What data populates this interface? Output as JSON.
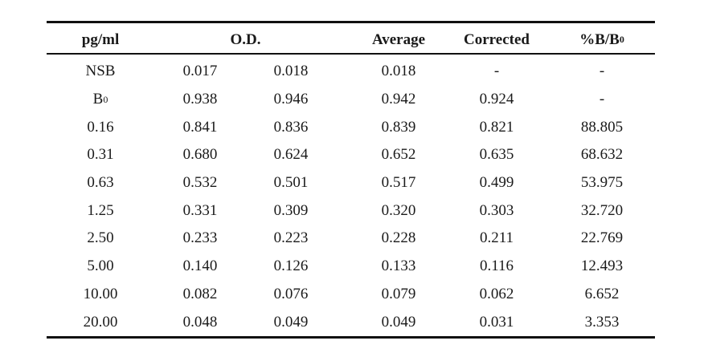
{
  "table": {
    "headers": {
      "conc": "pg/ml",
      "od": "O.D.",
      "average": "Average",
      "corrected": "Corrected",
      "pct_main": "%B/B",
      "pct_sub": "0"
    },
    "rows": [
      {
        "label": "NSB",
        "label_sub": "",
        "od1": "0.017",
        "od2": "0.018",
        "average": "0.018",
        "corrected": "-",
        "pct": "-"
      },
      {
        "label": "B",
        "label_sub": "0",
        "od1": "0.938",
        "od2": "0.946",
        "average": "0.942",
        "corrected": "0.924",
        "pct": "-"
      },
      {
        "label": "0.16",
        "label_sub": "",
        "od1": "0.841",
        "od2": "0.836",
        "average": "0.839",
        "corrected": "0.821",
        "pct": "88.805"
      },
      {
        "label": "0.31",
        "label_sub": "",
        "od1": "0.680",
        "od2": "0.624",
        "average": "0.652",
        "corrected": "0.635",
        "pct": "68.632"
      },
      {
        "label": "0.63",
        "label_sub": "",
        "od1": "0.532",
        "od2": "0.501",
        "average": "0.517",
        "corrected": "0.499",
        "pct": "53.975"
      },
      {
        "label": "1.25",
        "label_sub": "",
        "od1": "0.331",
        "od2": "0.309",
        "average": "0.320",
        "corrected": "0.303",
        "pct": "32.720"
      },
      {
        "label": "2.50",
        "label_sub": "",
        "od1": "0.233",
        "od2": "0.223",
        "average": "0.228",
        "corrected": "0.211",
        "pct": "22.769"
      },
      {
        "label": "5.00",
        "label_sub": "",
        "od1": "0.140",
        "od2": "0.126",
        "average": "0.133",
        "corrected": "0.116",
        "pct": "12.493"
      },
      {
        "label": "10.00",
        "label_sub": "",
        "od1": "0.082",
        "od2": "0.076",
        "average": "0.079",
        "corrected": "0.062",
        "pct": "6.652"
      },
      {
        "label": "20.00",
        "label_sub": "",
        "od1": "0.048",
        "od2": "0.049",
        "average": "0.049",
        "corrected": "0.031",
        "pct": "3.353"
      }
    ]
  }
}
